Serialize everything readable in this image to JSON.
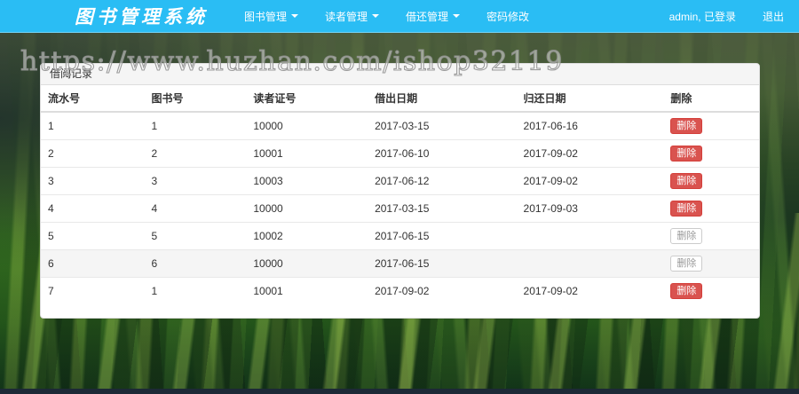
{
  "navbar": {
    "brand": "图书管理系统",
    "items": [
      {
        "label": "图书管理",
        "has_caret": true
      },
      {
        "label": "读者管理",
        "has_caret": true
      },
      {
        "label": "借还管理",
        "has_caret": true
      },
      {
        "label": "密码修改",
        "has_caret": false
      }
    ],
    "user_status": "admin, 已登录",
    "logout": "退出"
  },
  "watermark": "https://www.huzhan.com/ishop32119",
  "panel": {
    "title": "借阅记录",
    "table": {
      "headers": [
        "流水号",
        "图书号",
        "读者证号",
        "借出日期",
        "归还日期",
        "删除"
      ],
      "delete_label": "删除",
      "rows": [
        {
          "serial": "1",
          "book_id": "1",
          "reader_id": "10000",
          "borrow_date": "2017-03-15",
          "return_date": "2017-06-16",
          "delete_style": "danger",
          "highlighted": false
        },
        {
          "serial": "2",
          "book_id": "2",
          "reader_id": "10001",
          "borrow_date": "2017-06-10",
          "return_date": "2017-09-02",
          "delete_style": "danger",
          "highlighted": false
        },
        {
          "serial": "3",
          "book_id": "3",
          "reader_id": "10003",
          "borrow_date": "2017-06-12",
          "return_date": "2017-09-02",
          "delete_style": "danger",
          "highlighted": false
        },
        {
          "serial": "4",
          "book_id": "4",
          "reader_id": "10000",
          "borrow_date": "2017-03-15",
          "return_date": "2017-09-03",
          "delete_style": "danger",
          "highlighted": false
        },
        {
          "serial": "5",
          "book_id": "5",
          "reader_id": "10002",
          "borrow_date": "2017-06-15",
          "return_date": "",
          "delete_style": "default",
          "highlighted": false
        },
        {
          "serial": "6",
          "book_id": "6",
          "reader_id": "10000",
          "borrow_date": "2017-06-15",
          "return_date": "",
          "delete_style": "default",
          "highlighted": true
        },
        {
          "serial": "7",
          "book_id": "1",
          "reader_id": "10001",
          "borrow_date": "2017-09-02",
          "return_date": "2017-09-02",
          "delete_style": "danger",
          "highlighted": false
        }
      ]
    }
  },
  "colors": {
    "navbar": "#2abdf4",
    "danger": "#d9534f",
    "panel_heading_bg": "#f5f5f5",
    "bottom_bar": "#1d2936"
  }
}
